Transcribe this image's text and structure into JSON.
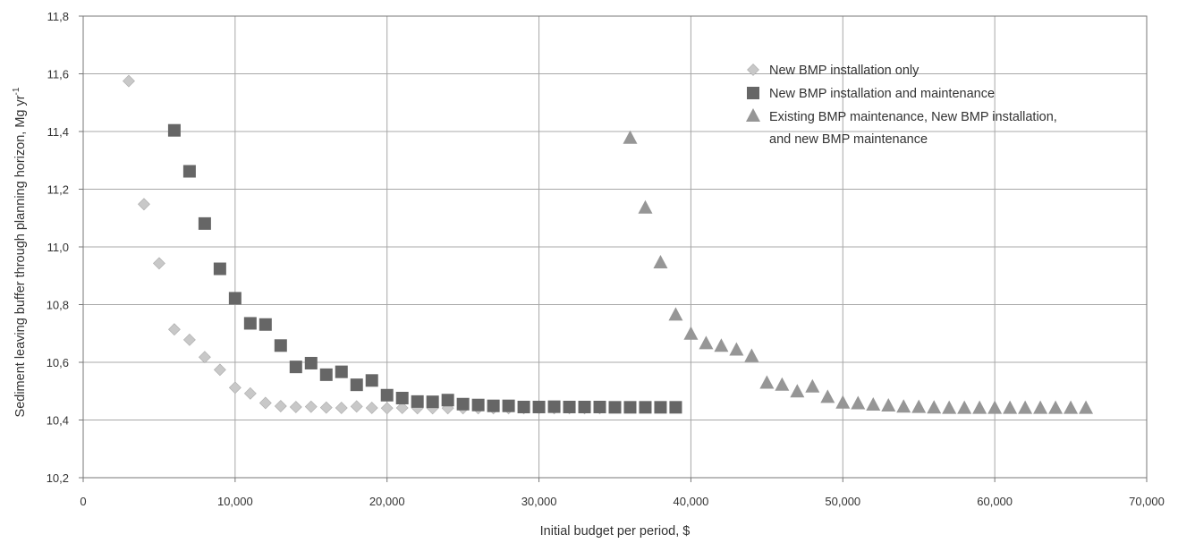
{
  "chart_data": {
    "type": "scatter",
    "xlabel": "Initial budget per period, $",
    "ylabel": "Sediment leaving buffer through planning horizon, Mg yr",
    "ylabel_superscript": "-1",
    "xlim": [
      0,
      70000
    ],
    "ylim": [
      10.2,
      11.8
    ],
    "x_ticks": [
      0,
      10000,
      20000,
      30000,
      40000,
      50000,
      60000,
      70000
    ],
    "x_tick_labels": [
      "0",
      "10,000",
      "20,000",
      "30,000",
      "40,000",
      "50,000",
      "60,000",
      "70,000"
    ],
    "y_ticks": [
      10.2,
      10.4,
      10.6,
      10.8,
      11.0,
      11.2,
      11.4,
      11.6,
      11.8
    ],
    "y_tick_labels": [
      "10,2",
      "10,4",
      "10,6",
      "10,8",
      "11,0",
      "11,2",
      "11,4",
      "11,6",
      "11,8"
    ],
    "grid": true,
    "legend_position": "top-right",
    "series": [
      {
        "name": "New BMP installation only",
        "marker": "diamond",
        "color": "#c8c8c8",
        "x": [
          3000,
          4000,
          5000,
          6000,
          7000,
          8000,
          9000,
          10000,
          11000,
          12000,
          13000,
          14000,
          15000,
          16000,
          17000,
          18000,
          19000,
          20000,
          21000,
          22000,
          23000,
          24000,
          25000,
          26000,
          27000,
          28000,
          29000,
          30000,
          31000,
          32000,
          33000,
          34000
        ],
        "y": [
          11.575,
          11.148,
          10.943,
          10.714,
          10.678,
          10.618,
          10.574,
          10.512,
          10.492,
          10.459,
          10.448,
          10.445,
          10.446,
          10.443,
          10.442,
          10.447,
          10.442,
          10.441,
          10.442,
          10.441,
          10.441,
          10.441,
          10.441,
          10.441,
          10.441,
          10.441,
          10.441,
          10.441,
          10.441,
          10.441,
          10.441,
          10.441
        ]
      },
      {
        "name": "New BMP installation and maintenance",
        "marker": "square",
        "color": "#666666",
        "x": [
          6000,
          7000,
          8000,
          9000,
          10000,
          11000,
          12000,
          13000,
          14000,
          15000,
          16000,
          17000,
          18000,
          19000,
          20000,
          21000,
          22000,
          23000,
          24000,
          25000,
          26000,
          27000,
          28000,
          29000,
          30000,
          31000,
          32000,
          33000,
          34000,
          35000,
          36000,
          37000,
          38000,
          39000
        ],
        "y": [
          11.404,
          11.262,
          11.081,
          10.924,
          10.822,
          10.735,
          10.731,
          10.658,
          10.584,
          10.597,
          10.557,
          10.567,
          10.522,
          10.537,
          10.486,
          10.476,
          10.464,
          10.463,
          10.469,
          10.455,
          10.452,
          10.449,
          10.449,
          10.445,
          10.445,
          10.446,
          10.445,
          10.445,
          10.445,
          10.444,
          10.444,
          10.444,
          10.444,
          10.444
        ]
      },
      {
        "name": "Existing BMP maintenance, New BMP installation, and new BMP maintenance",
        "name_lines": [
          "Existing BMP maintenance, New BMP installation,",
          "and new BMP maintenance"
        ],
        "marker": "triangle",
        "color": "#969696",
        "x": [
          36000,
          37000,
          38000,
          39000,
          40000,
          41000,
          42000,
          43000,
          44000,
          45000,
          46000,
          47000,
          48000,
          49000,
          50000,
          51000,
          52000,
          53000,
          54000,
          55000,
          56000,
          57000,
          58000,
          59000,
          60000,
          61000,
          62000,
          63000,
          64000,
          65000,
          66000
        ],
        "y": [
          11.376,
          11.134,
          10.944,
          10.763,
          10.697,
          10.664,
          10.655,
          10.642,
          10.62,
          10.527,
          10.52,
          10.497,
          10.514,
          10.478,
          10.458,
          10.456,
          10.451,
          10.448,
          10.444,
          10.443,
          10.441,
          10.44,
          10.44,
          10.44,
          10.44,
          10.44,
          10.44,
          10.44,
          10.44,
          10.44,
          10.44
        ]
      }
    ]
  }
}
